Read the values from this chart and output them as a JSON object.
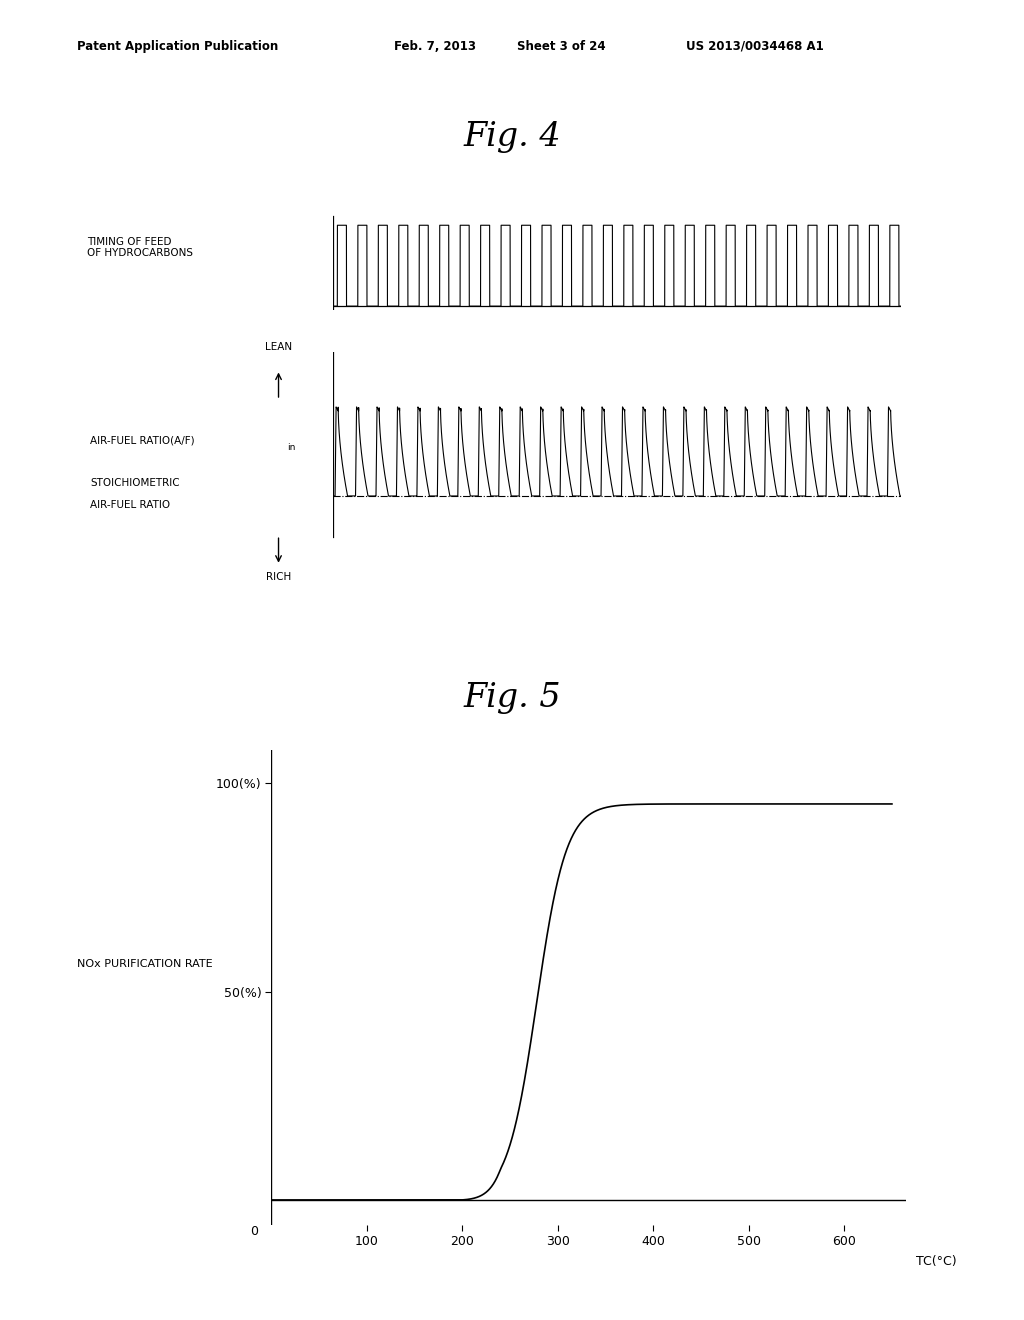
{
  "background_color": "#ffffff",
  "header_text": "Patent Application Publication",
  "header_date": "Feb. 7, 2013",
  "header_sheet": "Sheet 3 of 24",
  "header_patent": "US 2013/0034468 A1",
  "fig4_title": "Fig. 4",
  "fig5_title": "Fig. 5",
  "fig5_ylabel": "NOx PURIFICATION RATE",
  "fig5_xlabel": "TC(°C)",
  "fig5_xticks": [
    100,
    200,
    300,
    400,
    500,
    600
  ],
  "num_pulses": 28,
  "line_color": "#000000"
}
